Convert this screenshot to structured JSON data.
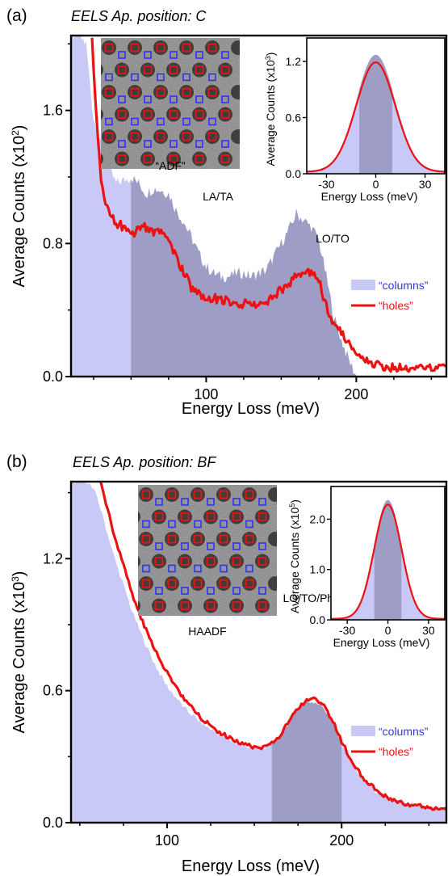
{
  "colors": {
    "columns_fill": "#c9c9f7",
    "window_fill": "#9d9dc6",
    "holes_line": "#ee1111",
    "columns_text": "#3333ee",
    "holes_text": "#ee1111",
    "marker_red": "#ee1111",
    "marker_blue": "#3333ee"
  },
  "chart_data": [
    {
      "type": "area",
      "panel": "(a)",
      "title": "EELS Ap. position: C",
      "xlabel": "Energy Loss (meV)",
      "ylabel_main": "Average Counts (x10",
      "ylabel_exp": "2",
      "ylabel_end": ")",
      "xlim": [
        10,
        260
      ],
      "ylim": [
        0,
        2.05
      ],
      "xticks": [
        100,
        200
      ],
      "xtick_labels": [
        "100",
        "200"
      ],
      "yticks": [
        0.0,
        0.8,
        1.6
      ],
      "ytick_labels": [
        "0.0",
        "0.8",
        "1.6"
      ],
      "integration_window": [
        50,
        200
      ],
      "series": [
        {
          "name": "“columns”",
          "style": "filled",
          "x": [
            10,
            15,
            20,
            25,
            30,
            35,
            40,
            45,
            50,
            55,
            60,
            65,
            70,
            75,
            80,
            85,
            90,
            95,
            100,
            105,
            110,
            115,
            120,
            125,
            130,
            135,
            140,
            145,
            150,
            155,
            160,
            165,
            170,
            175,
            180,
            185,
            190,
            195,
            200
          ],
          "y": [
            2.05,
            2.05,
            2.0,
            1.55,
            1.4,
            1.26,
            1.16,
            1.18,
            1.2,
            1.16,
            1.1,
            1.13,
            1.12,
            1.1,
            1.0,
            0.93,
            0.84,
            0.74,
            0.66,
            0.62,
            0.6,
            0.6,
            0.62,
            0.62,
            0.6,
            0.62,
            0.64,
            0.72,
            0.8,
            0.88,
            0.98,
            0.94,
            0.9,
            0.82,
            0.6,
            0.36,
            0.22,
            0.1,
            0.0
          ]
        },
        {
          "name": "“holes”",
          "style": "line",
          "x": [
            24,
            26,
            28,
            30,
            32,
            35,
            40,
            45,
            50,
            55,
            60,
            65,
            70,
            75,
            80,
            85,
            90,
            95,
            100,
            105,
            110,
            115,
            120,
            125,
            130,
            135,
            140,
            145,
            150,
            155,
            160,
            165,
            170,
            175,
            180,
            185,
            190,
            195,
            200,
            205,
            210,
            220,
            230,
            240,
            250,
            260
          ],
          "y": [
            2.05,
            1.7,
            1.4,
            1.2,
            1.08,
            1.0,
            0.92,
            0.9,
            0.86,
            0.88,
            0.9,
            0.86,
            0.86,
            0.82,
            0.72,
            0.62,
            0.54,
            0.5,
            0.48,
            0.47,
            0.46,
            0.46,
            0.44,
            0.44,
            0.42,
            0.43,
            0.44,
            0.48,
            0.52,
            0.56,
            0.6,
            0.62,
            0.62,
            0.58,
            0.42,
            0.3,
            0.26,
            0.2,
            0.14,
            0.1,
            0.08,
            0.06,
            0.05,
            0.05,
            0.05,
            0.05
          ]
        }
      ],
      "annotations": [
        "LA/TA",
        "LO/TO"
      ],
      "legend": {
        "placement": "right",
        "columns_label": "“columns”",
        "holes_label": "“holes”"
      },
      "image_inset": {
        "caption": "“ADF”"
      },
      "inset": {
        "xlabel": "Energy Loss (meV)",
        "ylabel_main": "Average Counts (x10",
        "ylabel_exp": "3",
        "ylabel_end": ")",
        "xlim": [
          -42,
          42
        ],
        "ylim": [
          0,
          1.45
        ],
        "xticks": [
          -30,
          0,
          30
        ],
        "xtick_labels": [
          "-30",
          "0",
          "30"
        ],
        "yticks": [
          0.0,
          0.6,
          1.2
        ],
        "ytick_labels": [
          "0.0",
          "0.6",
          "1.2"
        ],
        "integration_window": [
          -10,
          10
        ],
        "columns_peak": 1.24,
        "holes_peak": 1.17,
        "fwhm": 28
      }
    },
    {
      "type": "area",
      "panel": "(b)",
      "title": "EELS Ap. position: BF",
      "xlabel": "Energy Loss (meV)",
      "ylabel_main": "Average Counts (x10",
      "ylabel_exp": "3",
      "ylabel_end": ")",
      "xlim": [
        45,
        260
      ],
      "ylim": [
        0,
        1.55
      ],
      "xticks": [
        100,
        200
      ],
      "xtick_labels": [
        "100",
        "200"
      ],
      "yticks": [
        0.0,
        0.6,
        1.2
      ],
      "ytick_labels": [
        "0.0",
        "0.6",
        "1.2"
      ],
      "integration_window": [
        160,
        200
      ],
      "series": [
        {
          "name": "“columns”",
          "style": "filled",
          "x": [
            45,
            55,
            60,
            65,
            70,
            75,
            80,
            85,
            90,
            95,
            100,
            110,
            120,
            130,
            140,
            150,
            155,
            160,
            165,
            170,
            175,
            180,
            185,
            190,
            195,
            200,
            205,
            210,
            215,
            220,
            225,
            230,
            240,
            250,
            260
          ],
          "y": [
            1.55,
            1.55,
            1.48,
            1.34,
            1.2,
            1.08,
            0.96,
            0.86,
            0.77,
            0.69,
            0.62,
            0.52,
            0.45,
            0.4,
            0.36,
            0.34,
            0.34,
            0.36,
            0.4,
            0.46,
            0.52,
            0.55,
            0.55,
            0.52,
            0.45,
            0.36,
            0.28,
            0.22,
            0.17,
            0.14,
            0.12,
            0.1,
            0.08,
            0.07,
            0.06
          ]
        },
        {
          "name": "“holes”",
          "style": "line",
          "x": [
            62,
            65,
            70,
            75,
            80,
            85,
            90,
            95,
            100,
            110,
            120,
            130,
            140,
            150,
            155,
            160,
            165,
            170,
            175,
            180,
            185,
            190,
            195,
            200,
            205,
            210,
            215,
            220,
            225,
            230,
            240,
            250,
            260
          ],
          "y": [
            1.55,
            1.45,
            1.3,
            1.17,
            1.04,
            0.93,
            0.84,
            0.76,
            0.68,
            0.56,
            0.47,
            0.41,
            0.37,
            0.34,
            0.34,
            0.36,
            0.4,
            0.46,
            0.52,
            0.56,
            0.56,
            0.53,
            0.46,
            0.37,
            0.29,
            0.23,
            0.18,
            0.15,
            0.12,
            0.1,
            0.08,
            0.07,
            0.06
          ]
        }
      ],
      "annotations": [
        "LO/TO/PhPs"
      ],
      "legend": {
        "placement": "right",
        "columns_label": "“columns”",
        "holes_label": "“holes”"
      },
      "image_inset": {
        "caption": "HAADF"
      },
      "inset": {
        "xlabel": "Energy Loss (meV)",
        "ylabel_main": "Average Counts (x10",
        "ylabel_exp": "5",
        "ylabel_end": ")",
        "xlim": [
          -42,
          42
        ],
        "ylim": [
          0,
          2.65
        ],
        "xticks": [
          -30,
          0,
          30
        ],
        "xtick_labels": [
          "-30",
          "0",
          "30"
        ],
        "yticks": [
          0.0,
          1.0,
          2.0
        ],
        "ytick_labels": [
          "0.0",
          "1.0",
          "2.0"
        ],
        "integration_window": [
          -10,
          10
        ],
        "columns_peak": 2.35,
        "holes_peak": 2.27,
        "fwhm": 24
      }
    }
  ]
}
